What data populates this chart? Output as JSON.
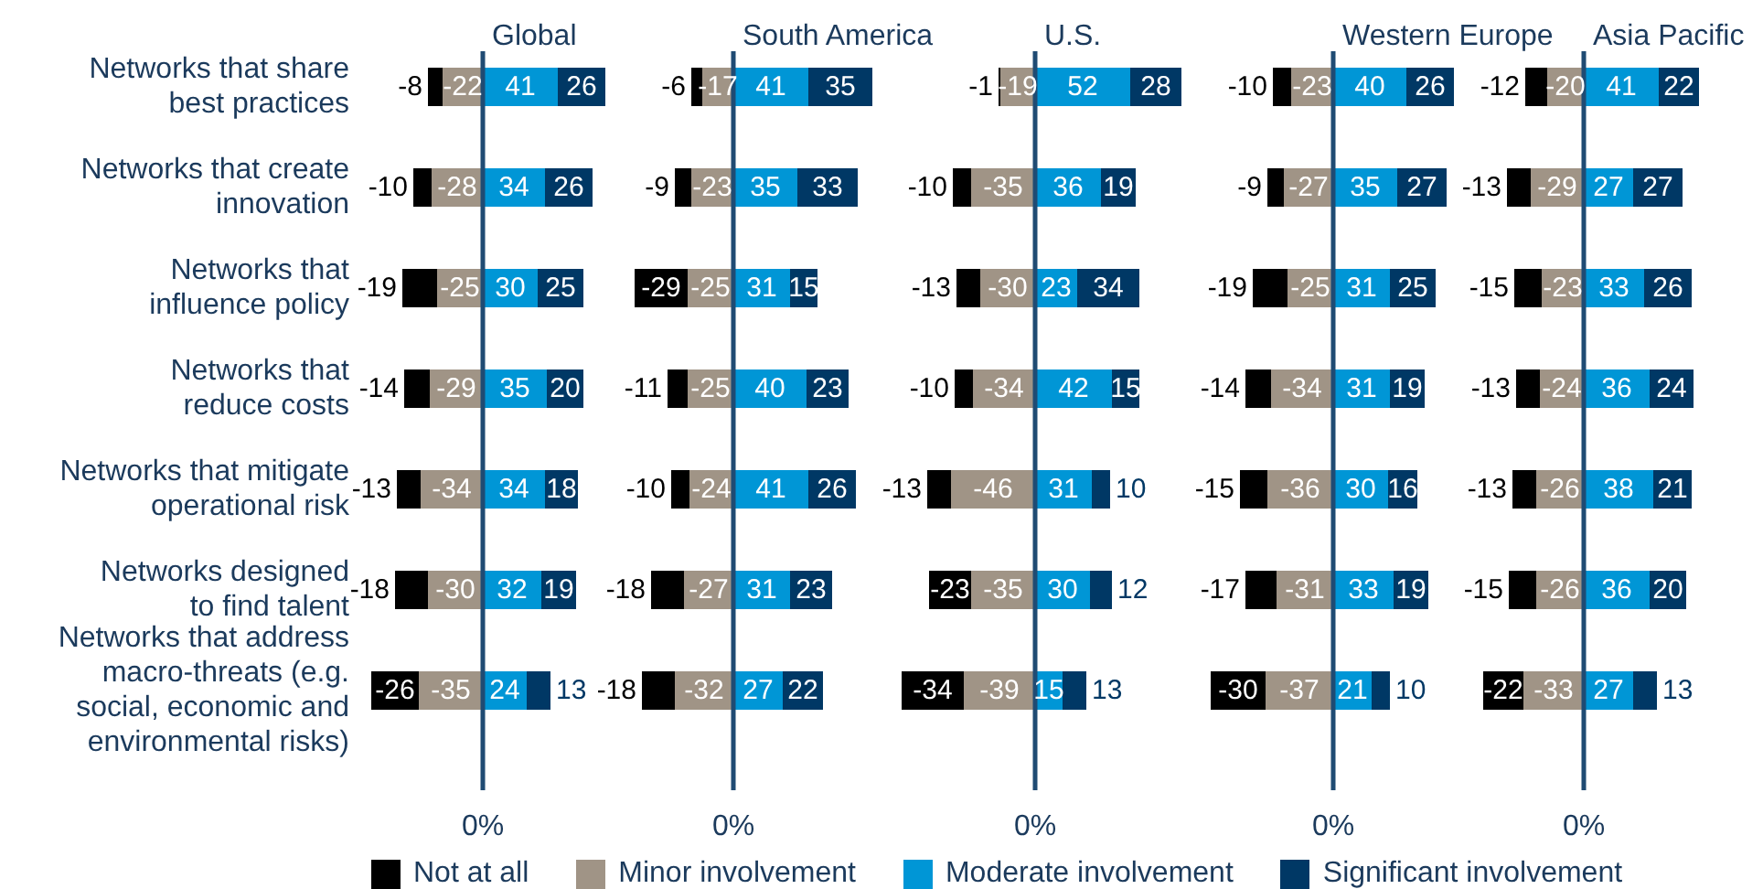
{
  "chart_data": [
    {
      "type": "bar",
      "orientation": "horizontal",
      "stacked": true,
      "title": "Global",
      "categories": [
        "Networks that share\nbest practices",
        "Networks that create\ninnovation",
        "Networks that\ninfluence policy",
        "Networks that\nreduce costs",
        "Networks that mitigate\noperational risk",
        "Networks designed\nto find talent",
        "Networks that address\nmacro-threats (e.g.\nsocial, economic and\nenvironmental risks)"
      ],
      "ref_lines": [
        {
          "axis": "x",
          "value": 0,
          "label": "0%",
          "color": "#1f4b73"
        }
      ],
      "data_labels": true,
      "legend": "bottom",
      "series": [
        {
          "name": "Minor involvement",
          "color": "#a09486",
          "values": [
            -22,
            -28,
            -25,
            -29,
            -34,
            -30,
            -35
          ]
        },
        {
          "name": "Not at all",
          "color": "#000000",
          "values": [
            -8,
            -10,
            -19,
            -14,
            -13,
            -18,
            -26
          ]
        },
        {
          "name": "Moderate involvement",
          "color": "#0096d6",
          "values": [
            41,
            34,
            30,
            35,
            34,
            32,
            24
          ]
        },
        {
          "name": "Significant involvement",
          "color": "#003865",
          "values": [
            26,
            26,
            25,
            20,
            18,
            19,
            13
          ]
        }
      ]
    },
    {
      "type": "bar",
      "orientation": "horizontal",
      "stacked": true,
      "title": "South America",
      "categories": [
        null,
        null,
        null,
        null,
        null,
        null,
        null
      ],
      "ref_lines": [
        {
          "axis": "x",
          "value": 0,
          "label": "0%",
          "color": "#1f4b73"
        }
      ],
      "data_labels": true,
      "series": [
        {
          "color": "#a09486",
          "values": [
            -17,
            -23,
            -25,
            -25,
            -24,
            -27,
            -32
          ]
        },
        {
          "color": "#000000",
          "values": [
            -6,
            -9,
            -29,
            -11,
            -10,
            -18,
            -18
          ]
        },
        {
          "color": "#0096d6",
          "values": [
            41,
            35,
            31,
            40,
            41,
            31,
            27
          ]
        },
        {
          "color": "#003865",
          "values": [
            35,
            33,
            15,
            23,
            26,
            23,
            22
          ]
        }
      ]
    },
    {
      "type": "bar",
      "orientation": "horizontal",
      "stacked": true,
      "title": "U.S.",
      "categories": [
        null,
        null,
        null,
        null,
        null,
        null,
        null
      ],
      "ref_lines": [
        {
          "axis": "x",
          "value": 0,
          "label": "0%",
          "color": "#1f4b73"
        }
      ],
      "data_labels": true,
      "series": [
        {
          "color": "#a09486",
          "values": [
            -19,
            -35,
            -30,
            -34,
            -46,
            -35,
            -39
          ]
        },
        {
          "color": "#000000",
          "values": [
            -1,
            -10,
            -13,
            -10,
            -13,
            -23,
            -34
          ]
        },
        {
          "color": "#0096d6",
          "values": [
            52,
            36,
            23,
            42,
            31,
            30,
            15
          ]
        },
        {
          "color": "#003865",
          "values": [
            28,
            19,
            34,
            15,
            10,
            12,
            13
          ]
        }
      ]
    },
    {
      "type": "bar",
      "orientation": "horizontal",
      "stacked": true,
      "title": "Western Europe",
      "categories": [
        null,
        null,
        null,
        null,
        null,
        null,
        null
      ],
      "ref_lines": [
        {
          "axis": "x",
          "value": 0,
          "label": "0%",
          "color": "#1f4b73"
        }
      ],
      "data_labels": true,
      "series": [
        {
          "color": "#a09486",
          "values": [
            -23,
            -27,
            -25,
            -34,
            -36,
            -31,
            -37
          ]
        },
        {
          "color": "#000000",
          "values": [
            -10,
            -9,
            -19,
            -14,
            -15,
            -17,
            -30
          ]
        },
        {
          "color": "#0096d6",
          "values": [
            40,
            35,
            31,
            31,
            30,
            33,
            21
          ]
        },
        {
          "color": "#003865",
          "values": [
            26,
            27,
            25,
            19,
            16,
            19,
            10
          ]
        }
      ]
    },
    {
      "type": "bar",
      "orientation": "horizontal",
      "stacked": true,
      "title": "Asia Pacific",
      "categories": [
        null,
        null,
        null,
        null,
        null,
        null,
        null
      ],
      "ref_lines": [
        {
          "axis": "x",
          "value": 0,
          "label": "0%",
          "color": "#1f4b73"
        }
      ],
      "data_labels": true,
      "series": [
        {
          "color": "#a09486",
          "values": [
            -20,
            -29,
            -23,
            -24,
            -26,
            -26,
            -33
          ]
        },
        {
          "color": "#000000",
          "values": [
            -12,
            -13,
            -15,
            -13,
            -13,
            -15,
            -22
          ]
        },
        {
          "color": "#0096d6",
          "values": [
            41,
            27,
            33,
            36,
            38,
            36,
            27
          ]
        },
        {
          "color": "#003865",
          "values": [
            22,
            27,
            26,
            24,
            21,
            20,
            13
          ]
        }
      ]
    }
  ]
}
